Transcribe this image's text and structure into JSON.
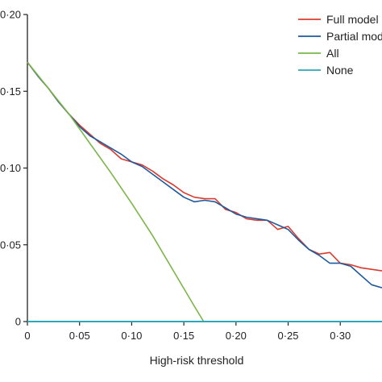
{
  "chart_data": {
    "type": "line",
    "title": "",
    "xlabel": "High-risk threshold",
    "ylabel": "",
    "xlim": [
      0,
      0.34
    ],
    "ylim": [
      0,
      0.2
    ],
    "xticks": [
      {
        "value": 0,
        "label": "0"
      },
      {
        "value": 0.05,
        "label": "0·05"
      },
      {
        "value": 0.1,
        "label": "0·10"
      },
      {
        "value": 0.15,
        "label": "0·15"
      },
      {
        "value": 0.2,
        "label": "0·20"
      },
      {
        "value": 0.25,
        "label": "0·25"
      },
      {
        "value": 0.3,
        "label": "0·30"
      }
    ],
    "yticks": [
      {
        "value": 0,
        "label": "0"
      },
      {
        "value": 0.05,
        "label": "0·05"
      },
      {
        "value": 0.1,
        "label": "0·10"
      },
      {
        "value": 0.15,
        "label": "0·15"
      },
      {
        "value": 0.2,
        "label": "0·20"
      }
    ],
    "grid": false,
    "legend_position": "top-right",
    "series": [
      {
        "name": "Full model",
        "color": "#d93b30",
        "x": [
          0,
          0.01,
          0.02,
          0.03,
          0.04,
          0.05,
          0.06,
          0.07,
          0.08,
          0.09,
          0.1,
          0.11,
          0.12,
          0.13,
          0.14,
          0.15,
          0.16,
          0.17,
          0.18,
          0.19,
          0.2,
          0.21,
          0.22,
          0.23,
          0.24,
          0.25,
          0.26,
          0.27,
          0.28,
          0.29,
          0.3,
          0.31,
          0.32,
          0.33,
          0.34
        ],
        "y": [
          0.169,
          0.16,
          0.152,
          0.143,
          0.135,
          0.128,
          0.122,
          0.116,
          0.112,
          0.106,
          0.104,
          0.102,
          0.098,
          0.093,
          0.089,
          0.084,
          0.081,
          0.08,
          0.08,
          0.073,
          0.071,
          0.067,
          0.066,
          0.066,
          0.06,
          0.062,
          0.054,
          0.047,
          0.044,
          0.045,
          0.038,
          0.037,
          0.035,
          0.034,
          0.033
        ]
      },
      {
        "name": "Partial model",
        "color": "#1f5a9c",
        "x": [
          0,
          0.01,
          0.02,
          0.03,
          0.04,
          0.05,
          0.06,
          0.07,
          0.08,
          0.09,
          0.1,
          0.11,
          0.12,
          0.13,
          0.14,
          0.15,
          0.16,
          0.17,
          0.18,
          0.19,
          0.2,
          0.21,
          0.22,
          0.23,
          0.24,
          0.25,
          0.26,
          0.27,
          0.28,
          0.29,
          0.3,
          0.31,
          0.32,
          0.33,
          0.34
        ],
        "y": [
          0.169,
          0.16,
          0.152,
          0.143,
          0.135,
          0.127,
          0.121,
          0.117,
          0.113,
          0.109,
          0.104,
          0.101,
          0.096,
          0.091,
          0.086,
          0.081,
          0.078,
          0.079,
          0.078,
          0.074,
          0.07,
          0.068,
          0.067,
          0.066,
          0.063,
          0.06,
          0.053,
          0.047,
          0.043,
          0.038,
          0.038,
          0.036,
          0.03,
          0.024,
          0.022
        ]
      },
      {
        "name": "All",
        "color": "#7ab648",
        "x": [
          0,
          0.02,
          0.04,
          0.06,
          0.08,
          0.1,
          0.12,
          0.14,
          0.16,
          0.169
        ],
        "y": [
          0.169,
          0.152,
          0.135,
          0.116,
          0.097,
          0.077,
          0.056,
          0.033,
          0.01,
          0.0
        ]
      },
      {
        "name": "None",
        "color": "#2aa7b8",
        "x": [
          0,
          0.34
        ],
        "y": [
          0,
          0
        ]
      }
    ]
  }
}
